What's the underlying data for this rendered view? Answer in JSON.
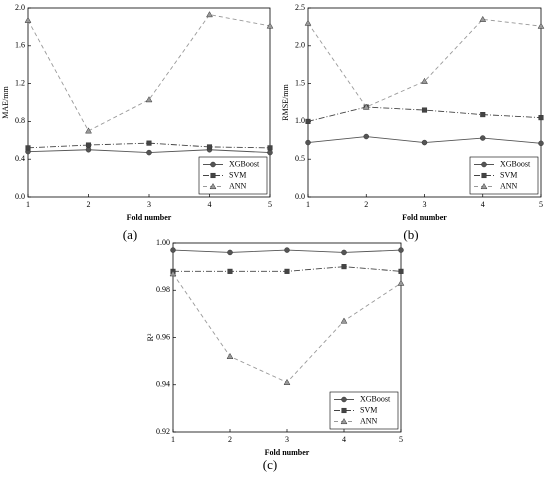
{
  "chart_data": [
    {
      "type": "line",
      "panel_label": "(a)",
      "xlabel": "Fold number",
      "ylabel": "MAE/mm",
      "x": [
        1,
        2,
        3,
        4,
        5
      ],
      "xlim": [
        1,
        5
      ],
      "xticks": [
        1,
        2,
        3,
        4,
        5
      ],
      "ylim": [
        0,
        2.0
      ],
      "yticks": [
        {
          "value": 0,
          "label": "0.0"
        },
        0.4,
        0.8,
        1.2,
        1.6,
        {
          "value": 2.0,
          "label": "2.0"
        }
      ],
      "legend": "lower right",
      "series": [
        {
          "name": "XGBoost",
          "color": "#555555",
          "linestyle": "solid",
          "marker": "circle",
          "values": [
            0.48,
            0.5,
            0.47,
            0.5,
            0.47
          ]
        },
        {
          "name": "SVM",
          "color": "#444444",
          "linestyle": "dashdot",
          "marker": "square",
          "values": [
            0.52,
            0.55,
            0.57,
            0.53,
            0.52
          ]
        },
        {
          "name": "ANN",
          "color": "#999999",
          "linestyle": "dashed",
          "marker": "triangle",
          "values": [
            1.87,
            0.7,
            1.03,
            1.93,
            1.81
          ]
        }
      ]
    },
    {
      "type": "line",
      "panel_label": "(b)",
      "xlabel": "Fold number",
      "ylabel": "RMSE/mm",
      "x": [
        1,
        2,
        3,
        4,
        5
      ],
      "xlim": [
        1,
        5
      ],
      "xticks": [
        1,
        2,
        3,
        4,
        5
      ],
      "ylim": [
        0,
        2.5
      ],
      "yticks": [
        {
          "value": 0,
          "label": "0.0"
        },
        0.5,
        {
          "value": 1.0,
          "label": "1.0"
        },
        1.5,
        {
          "value": 2.0,
          "label": "2.0"
        },
        2.5
      ],
      "legend": "lower right",
      "series": [
        {
          "name": "XGBoost",
          "color": "#555555",
          "linestyle": "solid",
          "marker": "circle",
          "values": [
            0.72,
            0.8,
            0.72,
            0.78,
            0.71
          ]
        },
        {
          "name": "SVM",
          "color": "#444444",
          "linestyle": "dashdot",
          "marker": "square",
          "values": [
            1.0,
            1.19,
            1.15,
            1.09,
            1.05
          ]
        },
        {
          "name": "ANN",
          "color": "#999999",
          "linestyle": "dashed",
          "marker": "triangle",
          "values": [
            2.3,
            1.19,
            1.53,
            2.35,
            2.26
          ]
        }
      ]
    },
    {
      "type": "line",
      "panel_label": "(c)",
      "xlabel": "Fold number",
      "ylabel": "R²",
      "x": [
        1,
        2,
        3,
        4,
        5
      ],
      "xlim": [
        1,
        5
      ],
      "xticks": [
        1,
        2,
        3,
        4,
        5
      ],
      "ylim": [
        0.92,
        1.0
      ],
      "yticks": [
        0.92,
        0.94,
        0.96,
        0.98,
        {
          "value": 1.0,
          "label": "1.00"
        }
      ],
      "legend": "lower right",
      "series": [
        {
          "name": "XGBoost",
          "color": "#555555",
          "linestyle": "solid",
          "marker": "circle",
          "values": [
            0.997,
            0.996,
            0.997,
            0.996,
            0.997
          ]
        },
        {
          "name": "SVM",
          "color": "#444444",
          "linestyle": "dashdot",
          "marker": "square",
          "values": [
            0.988,
            0.988,
            0.988,
            0.99,
            0.988
          ]
        },
        {
          "name": "ANN",
          "color": "#999999",
          "linestyle": "dashed",
          "marker": "triangle",
          "values": [
            0.987,
            0.952,
            0.941,
            0.967,
            0.983
          ]
        }
      ]
    }
  ]
}
